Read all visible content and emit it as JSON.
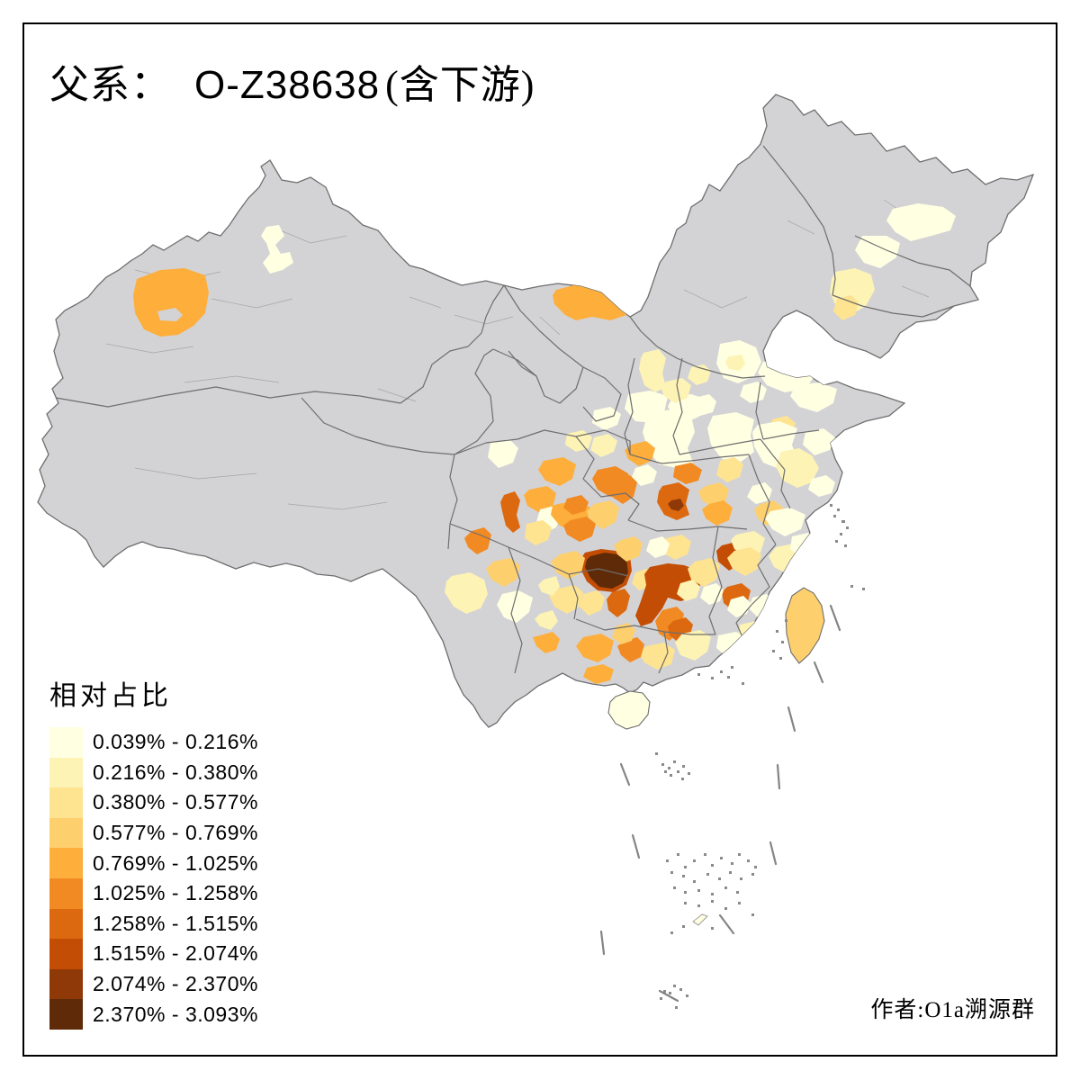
{
  "title": {
    "prefix": "父系：",
    "haplogroup": "O-Z38638",
    "suffix": "(含下游)"
  },
  "legend": {
    "title": "相对占比",
    "items": [
      {
        "label": "0.039% - 0.216%",
        "color": "#FFFFE2"
      },
      {
        "label": "0.216% - 0.380%",
        "color": "#FDF3B4"
      },
      {
        "label": "0.380% - 0.577%",
        "color": "#FEE391"
      },
      {
        "label": "0.577% - 0.769%",
        "color": "#FDCF6D"
      },
      {
        "label": "0.769% - 1.025%",
        "color": "#FDAE3B"
      },
      {
        "label": "1.025% - 1.258%",
        "color": "#F18A22"
      },
      {
        "label": "1.258% - 1.515%",
        "color": "#DC690F"
      },
      {
        "label": "1.515% - 2.074%",
        "color": "#C34D04"
      },
      {
        "label": "2.074% - 2.370%",
        "color": "#8F3808"
      },
      {
        "label": "2.370% - 3.093%",
        "color": "#5E2A07"
      }
    ]
  },
  "attribution": "作者:O1a溯源群",
  "map": {
    "no_data_color": "#D3D3D6",
    "border_color": "#6E6E6E",
    "thin_border_color": "#A5A5A8",
    "dash_color": "#848487",
    "speck_color": "#8A8A8D",
    "background": "#FFFFFF",
    "frame_color": "#000000",
    "palette": {
      "c1": "#FFFFE2",
      "c2": "#FDF3B4",
      "c3": "#FEE391",
      "c4": "#FDCF6D",
      "c5": "#FDAE3B",
      "c6": "#F18A22",
      "c7": "#DC690F",
      "c8": "#C34D04",
      "c9": "#8F3808",
      "c10": "#5E2A07"
    }
  }
}
